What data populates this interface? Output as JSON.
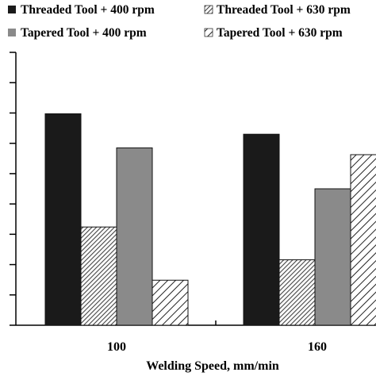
{
  "chart_data": {
    "type": "bar",
    "title": "",
    "xlabel": "Welding Speed, mm/min",
    "ylabel": "",
    "categories": [
      "100",
      "160"
    ],
    "ylim": [
      0,
      100
    ],
    "y_ticks_labels_visible": false,
    "grid": false,
    "legend_position": "top",
    "series": [
      {
        "name": "Threaded Tool + 400 rpm",
        "values": [
          77.5,
          70
        ],
        "color": "#1a1a1a",
        "pattern": "solid"
      },
      {
        "name": "Threaded Tool + 630 rpm",
        "values": [
          36,
          24
        ],
        "color": "#555555",
        "pattern": "dense-diagonal-hatch"
      },
      {
        "name": "Tapered Tool + 400 rpm",
        "values": [
          65,
          50
        ],
        "color": "#8a8a8a",
        "pattern": "solid"
      },
      {
        "name": "Tapered Tool + 630 rpm",
        "values": [
          16.5,
          62.5
        ],
        "color": "#333333",
        "pattern": "wide-diagonal-hatch"
      }
    ]
  }
}
